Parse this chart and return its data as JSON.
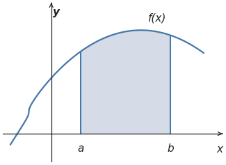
{
  "figsize": [
    3.25,
    2.37
  ],
  "dpi": 100,
  "bg_color": "#ffffff",
  "curve_color": "#4477AA",
  "shade_color": "#8899BB",
  "shade_alpha": 0.35,
  "a": 0.4,
  "b": 1.6,
  "x_curve_start": -0.55,
  "x_curve_end": 2.05,
  "func_label": "f(x)",
  "label_a": "a",
  "label_b": "b",
  "label_x": "x",
  "label_y": "y",
  "axis_color": "#222222",
  "line_width": 1.6,
  "font_size_labels": 11,
  "font_size_axis": 11,
  "font_size_func": 11,
  "xlim": [
    -0.65,
    2.3
  ],
  "ylim": [
    -0.38,
    1.75
  ]
}
